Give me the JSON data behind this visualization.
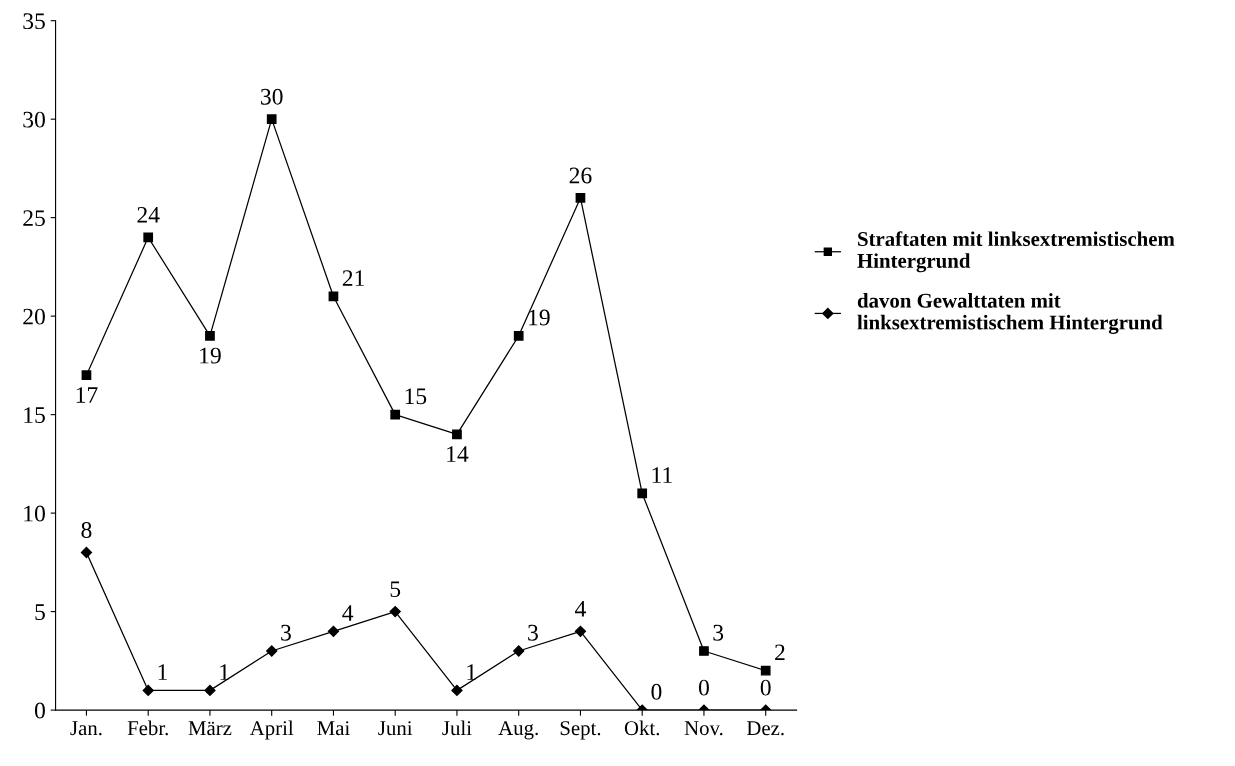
{
  "chart_data": {
    "type": "line",
    "categories": [
      "Jan.",
      "Febr.",
      "März",
      "April",
      "Mai",
      "Juni",
      "Juli",
      "Aug.",
      "Sept.",
      "Okt.",
      "Nov.",
      "Dez."
    ],
    "series": [
      {
        "name": "Straftaten mit linksextremistischem Hintergrund",
        "color": "#000000",
        "marker": "square",
        "values": [
          17,
          24,
          19,
          30,
          21,
          15,
          14,
          19,
          26,
          11,
          3,
          2
        ]
      },
      {
        "name": "davon Gewalttaten mit linksextremistischem Hintergrund",
        "color": "#000000",
        "marker": "diamond",
        "values": [
          8,
          1,
          1,
          3,
          4,
          5,
          1,
          3,
          4,
          0,
          0,
          0
        ]
      }
    ],
    "ylim": [
      0,
      35
    ],
    "yticks": [
      0,
      5,
      10,
      15,
      20,
      25,
      30,
      35
    ],
    "grid": false,
    "legend": "right",
    "data_labels": true,
    "line_style": "solid"
  }
}
